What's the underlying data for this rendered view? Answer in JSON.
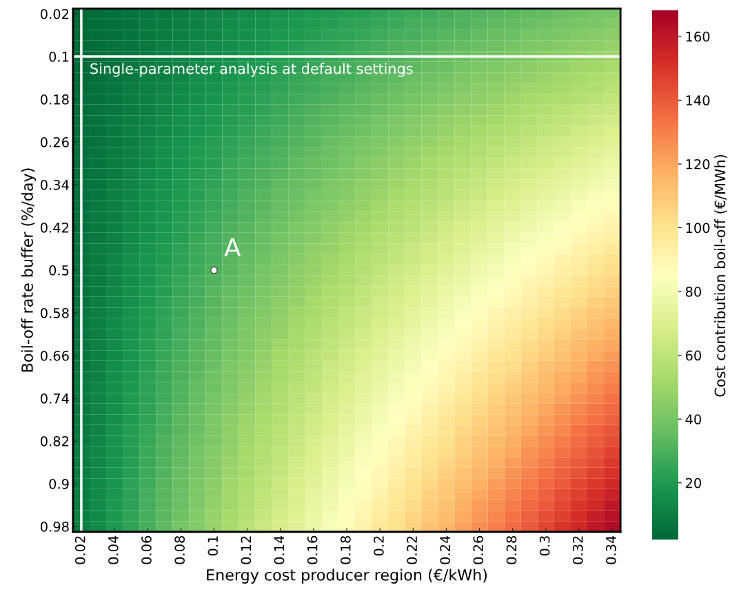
{
  "chart_data": {
    "type": "heatmap",
    "xlabel": "Energy cost producer region (€/kWh)",
    "ylabel": "Boil-off rate buffer (%/day)",
    "clabel": "Cost contribution boil-off (€/MWh)",
    "categories": [
      "0.02",
      null,
      "0.04",
      null,
      "0.06",
      null,
      "0.08",
      null,
      "0.1",
      null,
      "0.12",
      null,
      "0.14",
      null,
      "0.16",
      null,
      "0.18",
      null,
      "0.2",
      null,
      "0.22",
      null,
      "0.24",
      null,
      "0.26",
      null,
      "0.28",
      null,
      "0.3",
      null,
      "0.32",
      null,
      "0.34"
    ],
    "y_categories": [
      "0.02",
      null,
      null,
      null,
      "0.1",
      null,
      null,
      null,
      "0.18",
      null,
      null,
      null,
      "0.26",
      null,
      null,
      null,
      "0.34",
      null,
      null,
      null,
      "0.42",
      null,
      null,
      null,
      "0.5",
      null,
      null,
      null,
      "0.58",
      null,
      null,
      null,
      "0.66",
      null,
      null,
      null,
      "0.74",
      null,
      null,
      null,
      "0.82",
      null,
      null,
      null,
      "0.9",
      null,
      null,
      null,
      "0.98"
    ],
    "cells": [
      [
        2,
        4,
        5,
        6,
        7,
        8,
        9,
        11,
        12,
        13,
        14,
        15,
        17,
        18,
        19,
        20,
        21,
        22,
        24,
        25,
        26,
        27,
        28,
        30,
        31,
        32,
        33,
        34,
        35,
        37,
        38,
        39,
        40
      ],
      [
        3,
        4,
        5,
        6,
        8,
        9,
        10,
        11,
        13,
        14,
        15,
        16,
        18,
        19,
        20,
        21,
        23,
        24,
        25,
        26,
        28,
        29,
        30,
        31,
        33,
        34,
        35,
        36,
        38,
        39,
        40,
        41,
        43
      ],
      [
        3,
        4,
        5,
        7,
        8,
        9,
        11,
        12,
        13,
        15,
        16,
        17,
        19,
        20,
        21,
        23,
        24,
        25,
        27,
        28,
        29,
        31,
        32,
        33,
        35,
        36,
        37,
        39,
        40,
        41,
        43,
        44,
        45
      ],
      [
        3,
        4,
        6,
        7,
        8,
        10,
        11,
        13,
        14,
        15,
        17,
        18,
        20,
        21,
        23,
        24,
        25,
        27,
        28,
        30,
        31,
        32,
        34,
        35,
        37,
        38,
        39,
        41,
        42,
        44,
        45,
        46,
        48
      ],
      [
        3,
        4,
        6,
        7,
        9,
        10,
        12,
        13,
        15,
        16,
        18,
        19,
        21,
        22,
        24,
        25,
        27,
        28,
        30,
        31,
        33,
        34,
        36,
        37,
        39,
        40,
        42,
        43,
        45,
        46,
        47,
        49,
        50
      ],
      [
        3,
        5,
        6,
        8,
        9,
        11,
        12,
        14,
        16,
        17,
        19,
        20,
        22,
        23,
        25,
        27,
        28,
        30,
        31,
        33,
        34,
        36,
        37,
        39,
        41,
        42,
        44,
        45,
        47,
        48,
        50,
        51,
        53
      ],
      [
        3,
        5,
        7,
        8,
        10,
        11,
        13,
        15,
        16,
        18,
        20,
        21,
        23,
        25,
        26,
        28,
        29,
        31,
        33,
        34,
        36,
        38,
        39,
        41,
        43,
        44,
        46,
        47,
        49,
        51,
        52,
        54,
        56
      ],
      [
        3,
        5,
        7,
        9,
        10,
        12,
        14,
        15,
        17,
        19,
        21,
        22,
        24,
        26,
        27,
        29,
        31,
        33,
        34,
        36,
        38,
        39,
        41,
        43,
        45,
        46,
        48,
        50,
        51,
        53,
        55,
        56,
        58
      ],
      [
        4,
        5,
        7,
        9,
        11,
        13,
        14,
        16,
        18,
        20,
        21,
        23,
        25,
        27,
        29,
        30,
        32,
        34,
        36,
        38,
        39,
        41,
        43,
        45,
        46,
        48,
        50,
        52,
        54,
        55,
        57,
        59,
        61
      ],
      [
        4,
        6,
        7,
        9,
        11,
        13,
        15,
        17,
        19,
        21,
        22,
        24,
        26,
        28,
        30,
        32,
        34,
        35,
        37,
        39,
        41,
        43,
        45,
        47,
        48,
        50,
        52,
        54,
        56,
        58,
        60,
        62,
        63
      ],
      [
        4,
        6,
        8,
        10,
        12,
        14,
        16,
        17,
        19,
        21,
        23,
        25,
        27,
        29,
        31,
        33,
        35,
        37,
        39,
        41,
        43,
        45,
        47,
        49,
        50,
        52,
        54,
        56,
        58,
        60,
        62,
        64,
        66
      ],
      [
        4,
        6,
        8,
        10,
        12,
        14,
        16,
        18,
        20,
        22,
        24,
        26,
        28,
        30,
        32,
        34,
        36,
        38,
        40,
        42,
        44,
        46,
        48,
        50,
        52,
        54,
        56,
        58,
        60,
        62,
        65,
        67,
        69
      ],
      [
        4,
        6,
        8,
        10,
        13,
        15,
        17,
        19,
        21,
        23,
        25,
        27,
        29,
        31,
        33,
        36,
        38,
        40,
        42,
        44,
        46,
        48,
        50,
        52,
        54,
        56,
        59,
        61,
        63,
        65,
        67,
        69,
        71
      ],
      [
        4,
        7,
        9,
        11,
        13,
        15,
        17,
        20,
        22,
        24,
        26,
        28,
        30,
        33,
        35,
        37,
        39,
        41,
        43,
        46,
        48,
        50,
        52,
        54,
        56,
        59,
        61,
        63,
        65,
        67,
        69,
        72,
        74
      ],
      [
        4,
        7,
        9,
        11,
        13,
        16,
        18,
        20,
        22,
        25,
        27,
        29,
        31,
        34,
        36,
        38,
        40,
        43,
        45,
        47,
        49,
        52,
        54,
        56,
        58,
        61,
        63,
        65,
        67,
        70,
        72,
        74,
        76
      ],
      [
        5,
        7,
        9,
        12,
        14,
        16,
        19,
        21,
        23,
        26,
        28,
        30,
        32,
        35,
        37,
        39,
        42,
        44,
        46,
        49,
        51,
        53,
        56,
        58,
        60,
        63,
        65,
        67,
        70,
        72,
        74,
        77,
        79
      ],
      [
        5,
        7,
        10,
        12,
        14,
        17,
        19,
        22,
        24,
        26,
        29,
        31,
        34,
        36,
        38,
        41,
        43,
        46,
        48,
        50,
        53,
        55,
        58,
        60,
        62,
        65,
        67,
        69,
        72,
        74,
        77,
        79,
        81
      ],
      [
        5,
        7,
        10,
        12,
        15,
        17,
        20,
        22,
        25,
        27,
        30,
        32,
        35,
        37,
        40,
        42,
        44,
        47,
        49,
        52,
        54,
        57,
        59,
        62,
        64,
        67,
        69,
        72,
        74,
        77,
        79,
        82,
        84
      ],
      [
        5,
        8,
        10,
        13,
        15,
        18,
        20,
        23,
        25,
        28,
        31,
        33,
        36,
        38,
        41,
        43,
        46,
        48,
        51,
        54,
        56,
        59,
        61,
        64,
        66,
        69,
        71,
        74,
        76,
        79,
        82,
        84,
        87
      ],
      [
        5,
        8,
        10,
        13,
        16,
        18,
        21,
        24,
        26,
        29,
        31,
        34,
        37,
        39,
        42,
        45,
        47,
        50,
        52,
        55,
        58,
        60,
        63,
        66,
        68,
        71,
        73,
        76,
        79,
        81,
        84,
        87,
        89
      ],
      [
        5,
        8,
        11,
        14,
        16,
        19,
        22,
        24,
        27,
        30,
        32,
        35,
        38,
        41,
        43,
        46,
        49,
        51,
        54,
        57,
        59,
        62,
        65,
        68,
        70,
        73,
        76,
        78,
        81,
        84,
        86,
        89,
        92
      ],
      [
        6,
        8,
        11,
        14,
        17,
        19,
        22,
        25,
        28,
        31,
        33,
        36,
        39,
        42,
        44,
        47,
        50,
        53,
        56,
        58,
        61,
        64,
        67,
        69,
        72,
        75,
        78,
        81,
        83,
        86,
        89,
        92,
        94
      ],
      [
        6,
        9,
        11,
        14,
        17,
        20,
        23,
        26,
        29,
        31,
        34,
        37,
        40,
        43,
        46,
        48,
        51,
        54,
        57,
        60,
        63,
        66,
        68,
        71,
        74,
        77,
        80,
        83,
        86,
        88,
        91,
        94,
        97
      ],
      [
        6,
        9,
        12,
        15,
        18,
        20,
        23,
        26,
        29,
        32,
        35,
        38,
        41,
        44,
        47,
        50,
        53,
        56,
        59,
        61,
        64,
        67,
        70,
        73,
        76,
        79,
        82,
        85,
        88,
        91,
        94,
        97,
        100
      ],
      [
        6,
        9,
        12,
        15,
        18,
        21,
        24,
        27,
        30,
        33,
        36,
        39,
        42,
        45,
        48,
        51,
        54,
        57,
        60,
        63,
        66,
        69,
        72,
        75,
        78,
        81,
        84,
        87,
        90,
        93,
        96,
        99,
        102
      ],
      [
        6,
        9,
        12,
        15,
        18,
        22,
        25,
        28,
        31,
        34,
        37,
        40,
        43,
        46,
        49,
        52,
        55,
        59,
        62,
        65,
        68,
        71,
        74,
        77,
        80,
        83,
        86,
        89,
        92,
        95,
        99,
        102,
        105
      ],
      [
        6,
        9,
        13,
        16,
        19,
        22,
        25,
        28,
        32,
        35,
        38,
        41,
        44,
        47,
        50,
        54,
        57,
        60,
        63,
        66,
        69,
        73,
        76,
        79,
        82,
        85,
        88,
        92,
        95,
        98,
        101,
        104,
        107
      ],
      [
        6,
        10,
        13,
        16,
        19,
        23,
        26,
        29,
        32,
        36,
        39,
        42,
        45,
        48,
        52,
        55,
        58,
        61,
        65,
        68,
        71,
        74,
        78,
        81,
        84,
        87,
        90,
        94,
        97,
        100,
        103,
        107,
        110
      ],
      [
        7,
        10,
        13,
        17,
        20,
        23,
        26,
        30,
        33,
        36,
        40,
        43,
        46,
        50,
        53,
        56,
        60,
        63,
        66,
        69,
        73,
        76,
        79,
        83,
        86,
        89,
        93,
        96,
        99,
        103,
        106,
        109,
        112
      ],
      [
        7,
        10,
        14,
        17,
        20,
        24,
        27,
        30,
        34,
        37,
        41,
        44,
        47,
        51,
        54,
        58,
        61,
        64,
        68,
        71,
        74,
        78,
        81,
        85,
        88,
        91,
        95,
        98,
        102,
        105,
        108,
        112,
        115
      ],
      [
        7,
        10,
        14,
        17,
        21,
        24,
        28,
        31,
        35,
        38,
        42,
        45,
        48,
        52,
        55,
        59,
        62,
        66,
        69,
        73,
        76,
        80,
        83,
        87,
        90,
        93,
        97,
        100,
        104,
        107,
        111,
        114,
        118
      ],
      [
        7,
        11,
        14,
        18,
        21,
        25,
        28,
        32,
        35,
        39,
        42,
        46,
        50,
        53,
        57,
        60,
        64,
        67,
        71,
        74,
        78,
        81,
        85,
        88,
        92,
        95,
        99,
        103,
        106,
        110,
        113,
        117,
        120
      ],
      [
        7,
        11,
        14,
        18,
        22,
        25,
        29,
        33,
        36,
        40,
        43,
        47,
        51,
        54,
        58,
        61,
        65,
        69,
        72,
        76,
        79,
        83,
        87,
        90,
        94,
        98,
        101,
        105,
        108,
        112,
        116,
        119,
        123
      ],
      [
        7,
        11,
        15,
        18,
        22,
        26,
        30,
        33,
        37,
        41,
        44,
        48,
        52,
        55,
        59,
        63,
        66,
        70,
        74,
        77,
        81,
        85,
        89,
        92,
        96,
        100,
        103,
        107,
        111,
        114,
        118,
        122,
        125
      ],
      [
        8,
        11,
        15,
        19,
        23,
        26,
        30,
        34,
        38,
        41,
        45,
        49,
        53,
        56,
        60,
        64,
        68,
        72,
        75,
        79,
        83,
        87,
        90,
        94,
        98,
        102,
        105,
        109,
        113,
        117,
        120,
        124,
        128
      ],
      [
        8,
        12,
        15,
        19,
        23,
        27,
        31,
        35,
        38,
        42,
        46,
        50,
        54,
        58,
        61,
        65,
        69,
        73,
        77,
        81,
        84,
        88,
        92,
        96,
        100,
        104,
        108,
        111,
        115,
        119,
        123,
        127,
        131
      ],
      [
        8,
        12,
        16,
        20,
        23,
        27,
        31,
        35,
        39,
        43,
        47,
        51,
        55,
        59,
        63,
        67,
        70,
        74,
        78,
        82,
        86,
        90,
        94,
        98,
        102,
        106,
        110,
        114,
        117,
        121,
        125,
        129,
        133
      ],
      [
        8,
        12,
        16,
        20,
        24,
        28,
        32,
        36,
        40,
        44,
        48,
        52,
        56,
        60,
        64,
        68,
        72,
        76,
        80,
        84,
        88,
        92,
        96,
        100,
        104,
        108,
        112,
        116,
        120,
        124,
        128,
        132,
        136
      ],
      [
        8,
        12,
        16,
        20,
        24,
        28,
        33,
        37,
        41,
        45,
        49,
        53,
        57,
        61,
        65,
        69,
        73,
        77,
        81,
        85,
        89,
        94,
        98,
        102,
        106,
        110,
        114,
        118,
        122,
        126,
        130,
        134,
        138
      ],
      [
        8,
        12,
        17,
        21,
        25,
        29,
        33,
        37,
        41,
        46,
        50,
        54,
        58,
        62,
        66,
        70,
        75,
        79,
        83,
        87,
        91,
        95,
        99,
        104,
        108,
        112,
        116,
        120,
        124,
        128,
        133,
        137,
        141
      ],
      [
        8,
        13,
        17,
        21,
        25,
        30,
        34,
        38,
        42,
        46,
        51,
        55,
        59,
        63,
        68,
        72,
        76,
        80,
        84,
        89,
        93,
        97,
        101,
        106,
        110,
        114,
        118,
        122,
        127,
        131,
        135,
        139,
        143
      ],
      [
        9,
        13,
        17,
        21,
        26,
        30,
        34,
        39,
        43,
        47,
        52,
        56,
        60,
        64,
        69,
        73,
        77,
        82,
        86,
        90,
        95,
        99,
        103,
        107,
        112,
        116,
        120,
        125,
        129,
        133,
        137,
        142,
        146
      ],
      [
        9,
        13,
        17,
        22,
        26,
        31,
        35,
        39,
        44,
        48,
        52,
        57,
        61,
        66,
        70,
        74,
        79,
        83,
        87,
        92,
        96,
        101,
        105,
        109,
        114,
        118,
        122,
        127,
        131,
        136,
        140,
        144,
        149
      ],
      [
        9,
        13,
        18,
        22,
        27,
        31,
        36,
        40,
        44,
        49,
        53,
        58,
        62,
        67,
        71,
        76,
        80,
        85,
        89,
        93,
        98,
        102,
        107,
        111,
        116,
        120,
        125,
        129,
        133,
        138,
        142,
        147,
        151
      ],
      [
        9,
        14,
        18,
        23,
        27,
        32,
        36,
        41,
        45,
        50,
        54,
        59,
        63,
        68,
        72,
        77,
        81,
        86,
        90,
        95,
        100,
        104,
        109,
        113,
        118,
        122,
        127,
        131,
        136,
        140,
        145,
        149,
        154
      ],
      [
        9,
        14,
        18,
        23,
        28,
        32,
        37,
        41,
        46,
        51,
        55,
        60,
        64,
        69,
        74,
        78,
        83,
        87,
        92,
        97,
        101,
        106,
        110,
        115,
        120,
        124,
        129,
        133,
        138,
        143,
        147,
        152,
        156
      ],
      [
        9,
        14,
        19,
        23,
        28,
        33,
        37,
        42,
        47,
        51,
        56,
        61,
        65,
        70,
        75,
        79,
        84,
        89,
        94,
        98,
        103,
        108,
        112,
        117,
        122,
        126,
        131,
        136,
        140,
        145,
        150,
        154,
        159
      ],
      [
        10,
        14,
        19,
        24,
        29,
        33,
        38,
        43,
        48,
        52,
        57,
        62,
        67,
        71,
        76,
        81,
        86,
        90,
        95,
        100,
        105,
        109,
        114,
        119,
        124,
        128,
        133,
        138,
        143,
        147,
        152,
        157,
        162
      ],
      [
        10,
        14,
        19,
        24,
        29,
        34,
        39,
        43,
        48,
        53,
        58,
        63,
        68,
        72,
        77,
        82,
        87,
        92,
        97,
        101,
        106,
        111,
        116,
        121,
        126,
        130,
        135,
        140,
        145,
        150,
        154,
        159,
        164
      ]
    ],
    "clim": [
      2,
      168
    ],
    "cticks": [
      20,
      40,
      60,
      80,
      100,
      120,
      140,
      160
    ],
    "ref_lines": [
      {
        "axis": "x",
        "value": "0.02",
        "color": "#ffffff"
      },
      {
        "axis": "y",
        "value": "0.1",
        "label": "Single-parameter analysis at default settings",
        "color": "#ffffff"
      }
    ],
    "annotations": [
      {
        "text": "A",
        "x": "0.1",
        "y": "0.5"
      }
    ]
  }
}
